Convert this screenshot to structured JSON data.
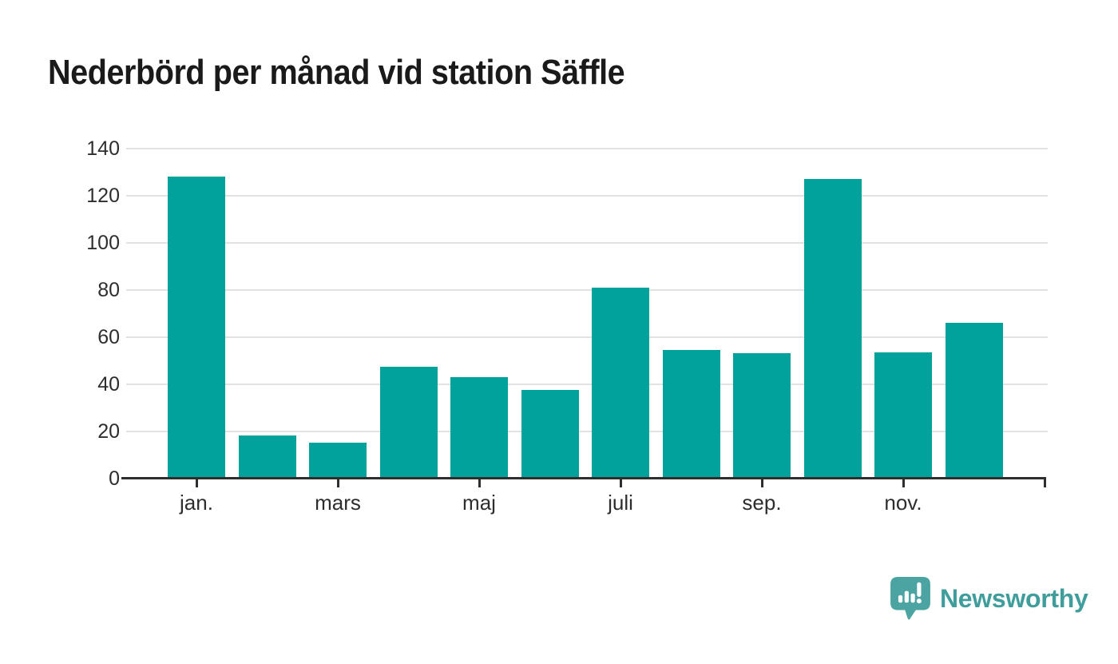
{
  "title": "Nederbörd per månad vid station Säffle",
  "brand": {
    "name": "Newsworthy",
    "icon": "newsworthy-speech-bubble-barchart-icon",
    "mark_color": "#4ba4a2",
    "text_color": "#3f9d9b"
  },
  "colors": {
    "background": "#ffffff",
    "bar": "#00a29b",
    "gridline": "#e2e2e2",
    "axis": "#2e2e2e",
    "title_text": "#1a1a1a",
    "tick_text": "#2d2d2d"
  },
  "chart_data": {
    "type": "bar",
    "title": "Nederbörd per månad vid station Säffle",
    "xlabel": "",
    "ylabel": "",
    "categories": [
      "jan.",
      "",
      "mars",
      "",
      "maj",
      "",
      "juli",
      "",
      "sep.",
      "",
      "nov.",
      ""
    ],
    "values": [
      128,
      18,
      15,
      47.5,
      43,
      37.5,
      81,
      54.5,
      53,
      127,
      53.5,
      66
    ],
    "ylim": [
      0,
      140
    ],
    "yticks": [
      0,
      20,
      40,
      60,
      80,
      100,
      120,
      140
    ],
    "xtick_labels_shown": [
      "jan.",
      "mars",
      "maj",
      "juli",
      "sep.",
      "nov."
    ],
    "xtick_every": 2,
    "grid": "horizontal-light",
    "legend": "none",
    "bar_color": "#00a29b",
    "n_bars": 12
  }
}
